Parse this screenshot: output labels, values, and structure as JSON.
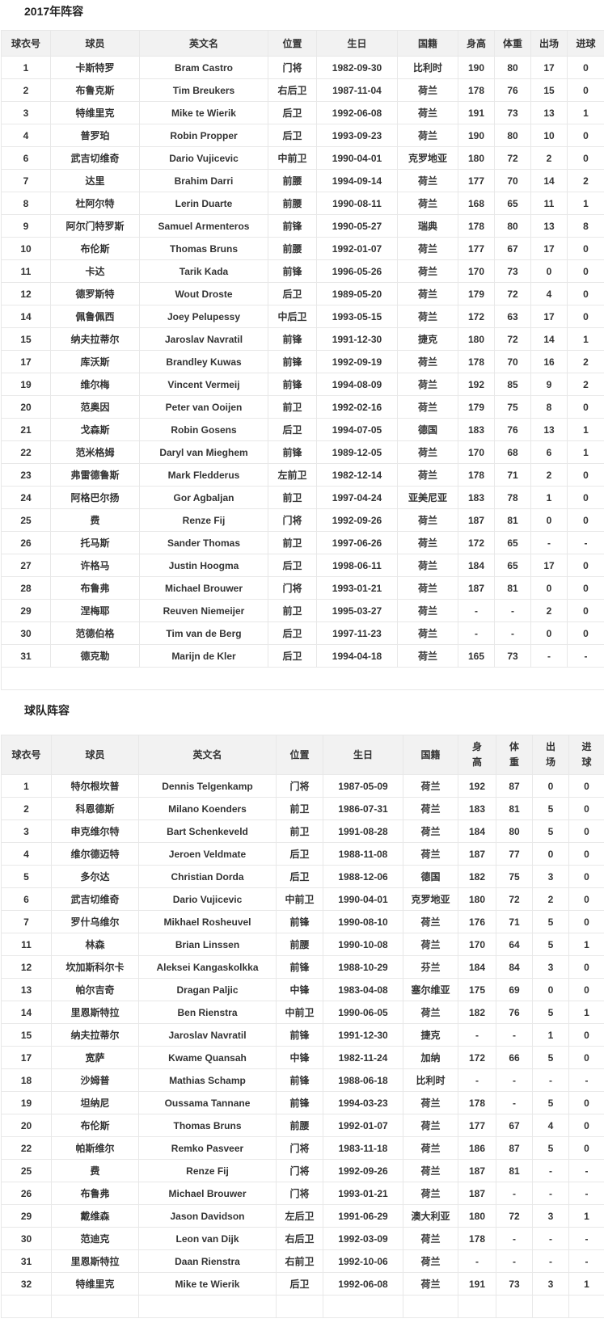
{
  "colors": {
    "header_bg": "#f2f2f2",
    "border": "#e8e8e8",
    "text": "#333333",
    "title": "#222222"
  },
  "sections": [
    {
      "title": "2017年阵容",
      "columns": [
        "球衣号",
        "球员",
        "英文名",
        "位置",
        "生日",
        "国籍",
        "身高",
        "体重",
        "出场",
        "进球"
      ],
      "rows": [
        [
          "1",
          "卡斯特罗",
          "Bram Castro",
          "门将",
          "1982-09-30",
          "比利时",
          "190",
          "80",
          "17",
          "0"
        ],
        [
          "2",
          "布鲁克斯",
          "Tim Breukers",
          "右后卫",
          "1987-11-04",
          "荷兰",
          "178",
          "76",
          "15",
          "0"
        ],
        [
          "3",
          "特维里克",
          "Mike te Wierik",
          "后卫",
          "1992-06-08",
          "荷兰",
          "191",
          "73",
          "13",
          "1"
        ],
        [
          "4",
          "普罗珀",
          "Robin Propper",
          "后卫",
          "1993-09-23",
          "荷兰",
          "190",
          "80",
          "10",
          "0"
        ],
        [
          "6",
          "武吉切维奇",
          "Dario Vujicevic",
          "中前卫",
          "1990-04-01",
          "克罗地亚",
          "180",
          "72",
          "2",
          "0"
        ],
        [
          "7",
          "达里",
          "Brahim Darri",
          "前腰",
          "1994-09-14",
          "荷兰",
          "177",
          "70",
          "14",
          "2"
        ],
        [
          "8",
          "杜阿尔特",
          "Lerin Duarte",
          "前腰",
          "1990-08-11",
          "荷兰",
          "168",
          "65",
          "11",
          "1"
        ],
        [
          "9",
          "阿尔门特罗斯",
          "Samuel Armenteros",
          "前锋",
          "1990-05-27",
          "瑞典",
          "178",
          "80",
          "13",
          "8"
        ],
        [
          "10",
          "布伦斯",
          "Thomas Bruns",
          "前腰",
          "1992-01-07",
          "荷兰",
          "177",
          "67",
          "17",
          "0"
        ],
        [
          "11",
          "卡达",
          "Tarik Kada",
          "前锋",
          "1996-05-26",
          "荷兰",
          "170",
          "73",
          "0",
          "0"
        ],
        [
          "12",
          "德罗斯特",
          "Wout Droste",
          "后卫",
          "1989-05-20",
          "荷兰",
          "179",
          "72",
          "4",
          "0"
        ],
        [
          "14",
          "佩鲁佩西",
          "Joey Pelupessy",
          "中后卫",
          "1993-05-15",
          "荷兰",
          "172",
          "63",
          "17",
          "0"
        ],
        [
          "15",
          "纳夫拉蒂尔",
          "Jaroslav Navratil",
          "前锋",
          "1991-12-30",
          "捷克",
          "180",
          "72",
          "14",
          "1"
        ],
        [
          "17",
          "库沃斯",
          "Brandley Kuwas",
          "前锋",
          "1992-09-19",
          "荷兰",
          "178",
          "70",
          "16",
          "2"
        ],
        [
          "19",
          "维尔梅",
          "Vincent Vermeij",
          "前锋",
          "1994-08-09",
          "荷兰",
          "192",
          "85",
          "9",
          "2"
        ],
        [
          "20",
          "范奥因",
          "Peter van Ooijen",
          "前卫",
          "1992-02-16",
          "荷兰",
          "179",
          "75",
          "8",
          "0"
        ],
        [
          "21",
          "戈森斯",
          "Robin Gosens",
          "后卫",
          "1994-07-05",
          "德国",
          "183",
          "76",
          "13",
          "1"
        ],
        [
          "22",
          "范米格姆",
          "Daryl van Mieghem",
          "前锋",
          "1989-12-05",
          "荷兰",
          "170",
          "68",
          "6",
          "1"
        ],
        [
          "23",
          "弗雷德鲁斯",
          "Mark Fledderus",
          "左前卫",
          "1982-12-14",
          "荷兰",
          "178",
          "71",
          "2",
          "0"
        ],
        [
          "24",
          "阿格巴尔扬",
          "Gor Agbaljan",
          "前卫",
          "1997-04-24",
          "亚美尼亚",
          "183",
          "78",
          "1",
          "0"
        ],
        [
          "25",
          "费",
          "Renze Fij",
          "门将",
          "1992-09-26",
          "荷兰",
          "187",
          "81",
          "0",
          "0"
        ],
        [
          "26",
          "托马斯",
          "Sander Thomas",
          "前卫",
          "1997-06-26",
          "荷兰",
          "172",
          "65",
          "-",
          "-"
        ],
        [
          "27",
          "许格马",
          "Justin Hoogma",
          "后卫",
          "1998-06-11",
          "荷兰",
          "184",
          "65",
          "17",
          "0"
        ],
        [
          "28",
          "布鲁弗",
          "Michael Brouwer",
          "门将",
          "1993-01-21",
          "荷兰",
          "187",
          "81",
          "0",
          "0"
        ],
        [
          "29",
          "涅梅耶",
          "Reuven Niemeijer",
          "前卫",
          "1995-03-27",
          "荷兰",
          "-",
          "-",
          "2",
          "0"
        ],
        [
          "30",
          "范德伯格",
          "Tim van de Berg",
          "后卫",
          "1997-11-23",
          "荷兰",
          "-",
          "-",
          "0",
          "0"
        ],
        [
          "31",
          "德克勒",
          "Marijn de Kler",
          "后卫",
          "1994-04-18",
          "荷兰",
          "165",
          "73",
          "-",
          "-"
        ]
      ]
    },
    {
      "title": "球队阵容",
      "columns": [
        "球衣号",
        "球员",
        "英文名",
        "位置",
        "生日",
        "国籍",
        "身\n高",
        "体\n重",
        "出\n场",
        "进\n球"
      ],
      "rows": [
        [
          "1",
          "特尔根坎普",
          "Dennis Telgenkamp",
          "门将",
          "1987-05-09",
          "荷兰",
          "192",
          "87",
          "0",
          "0"
        ],
        [
          "2",
          "科恩德斯",
          "Milano Koenders",
          "前卫",
          "1986-07-31",
          "荷兰",
          "183",
          "81",
          "5",
          "0"
        ],
        [
          "3",
          "申克维尔特",
          "Bart Schenkeveld",
          "前卫",
          "1991-08-28",
          "荷兰",
          "184",
          "80",
          "5",
          "0"
        ],
        [
          "4",
          "维尔德迈特",
          "Jeroen Veldmate",
          "后卫",
          "1988-11-08",
          "荷兰",
          "187",
          "77",
          "0",
          "0"
        ],
        [
          "5",
          "多尔达",
          "Christian Dorda",
          "后卫",
          "1988-12-06",
          "德国",
          "182",
          "75",
          "3",
          "0"
        ],
        [
          "6",
          "武吉切维奇",
          "Dario Vujicevic",
          "中前卫",
          "1990-04-01",
          "克罗地亚",
          "180",
          "72",
          "2",
          "0"
        ],
        [
          "7",
          "罗什乌维尔",
          "Mikhael Rosheuvel",
          "前锋",
          "1990-08-10",
          "荷兰",
          "176",
          "71",
          "5",
          "0"
        ],
        [
          "11",
          "林森",
          "Brian Linssen",
          "前腰",
          "1990-10-08",
          "荷兰",
          "170",
          "64",
          "5",
          "1"
        ],
        [
          "12",
          "坎加斯科尔卡",
          "Aleksei Kangaskolkka",
          "前锋",
          "1988-10-29",
          "芬兰",
          "184",
          "84",
          "3",
          "0"
        ],
        [
          "13",
          "帕尔吉奇",
          "Dragan Paljic",
          "中锋",
          "1983-04-08",
          "塞尔维亚",
          "175",
          "69",
          "0",
          "0"
        ],
        [
          "14",
          "里恩斯特拉",
          "Ben Rienstra",
          "中前卫",
          "1990-06-05",
          "荷兰",
          "182",
          "76",
          "5",
          "1"
        ],
        [
          "15",
          "纳夫拉蒂尔",
          "Jaroslav Navratil",
          "前锋",
          "1991-12-30",
          "捷克",
          "-",
          "-",
          "1",
          "0"
        ],
        [
          "17",
          "宽萨",
          "Kwame Quansah",
          "中锋",
          "1982-11-24",
          "加纳",
          "172",
          "66",
          "5",
          "0"
        ],
        [
          "18",
          "沙姆普",
          "Mathias Schamp",
          "前锋",
          "1988-06-18",
          "比利时",
          "-",
          "-",
          "-",
          "-"
        ],
        [
          "19",
          "坦纳尼",
          "Oussama Tannane",
          "前锋",
          "1994-03-23",
          "荷兰",
          "178",
          "-",
          "5",
          "0"
        ],
        [
          "20",
          "布伦斯",
          "Thomas Bruns",
          "前腰",
          "1992-01-07",
          "荷兰",
          "177",
          "67",
          "4",
          "0"
        ],
        [
          "22",
          "帕斯维尔",
          "Remko Pasveer",
          "门将",
          "1983-11-18",
          "荷兰",
          "186",
          "87",
          "5",
          "0"
        ],
        [
          "25",
          "费",
          "Renze Fij",
          "门将",
          "1992-09-26",
          "荷兰",
          "187",
          "81",
          "-",
          "-"
        ],
        [
          "26",
          "布鲁弗",
          "Michael Brouwer",
          "门将",
          "1993-01-21",
          "荷兰",
          "187",
          "-",
          "-",
          "-"
        ],
        [
          "29",
          "戴维森",
          "Jason Davidson",
          "左后卫",
          "1991-06-29",
          "澳大利亚",
          "180",
          "72",
          "3",
          "1"
        ],
        [
          "30",
          "范迪克",
          "Leon van Dijk",
          "右后卫",
          "1992-03-09",
          "荷兰",
          "178",
          "-",
          "-",
          "-"
        ],
        [
          "31",
          "里恩斯特拉",
          "Daan Rienstra",
          "右前卫",
          "1992-10-06",
          "荷兰",
          "-",
          "-",
          "-",
          "-"
        ],
        [
          "32",
          "特维里克",
          "Mike te Wierik",
          "后卫",
          "1992-06-08",
          "荷兰",
          "191",
          "73",
          "3",
          "1"
        ]
      ]
    }
  ]
}
